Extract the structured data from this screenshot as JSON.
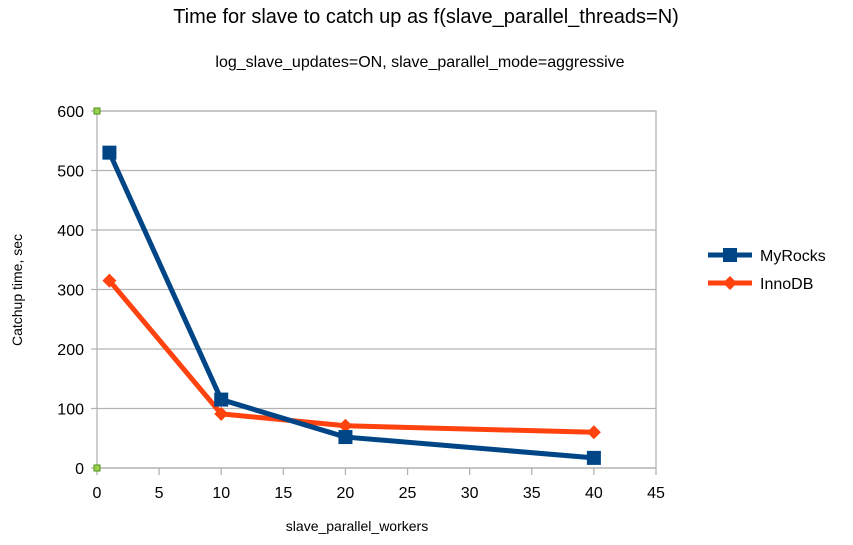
{
  "chart_data": {
    "type": "line",
    "title": "Time for slave to catch up as f(slave_parallel_threads=N)",
    "subtitle": "log_slave_updates=ON, slave_parallel_mode=aggressive",
    "xlabel": "slave_parallel_workers",
    "ylabel": "Catchup time, sec",
    "xlim": [
      0,
      45
    ],
    "ylim": [
      0,
      600
    ],
    "xticks": [
      0,
      5,
      10,
      15,
      20,
      25,
      30,
      35,
      40,
      45
    ],
    "yticks": [
      0,
      100,
      200,
      300,
      400,
      500,
      600
    ],
    "grid": "horizontal",
    "legend": "right",
    "x": [
      1,
      10,
      20,
      40
    ],
    "series": [
      {
        "name": "MyRocks",
        "values": [
          530,
          115,
          52,
          17
        ],
        "color": "#004586",
        "marker": "square"
      },
      {
        "name": "InnoDB",
        "values": [
          315,
          91,
          71,
          60
        ],
        "color": "#ff420e",
        "marker": "diamond"
      }
    ]
  }
}
